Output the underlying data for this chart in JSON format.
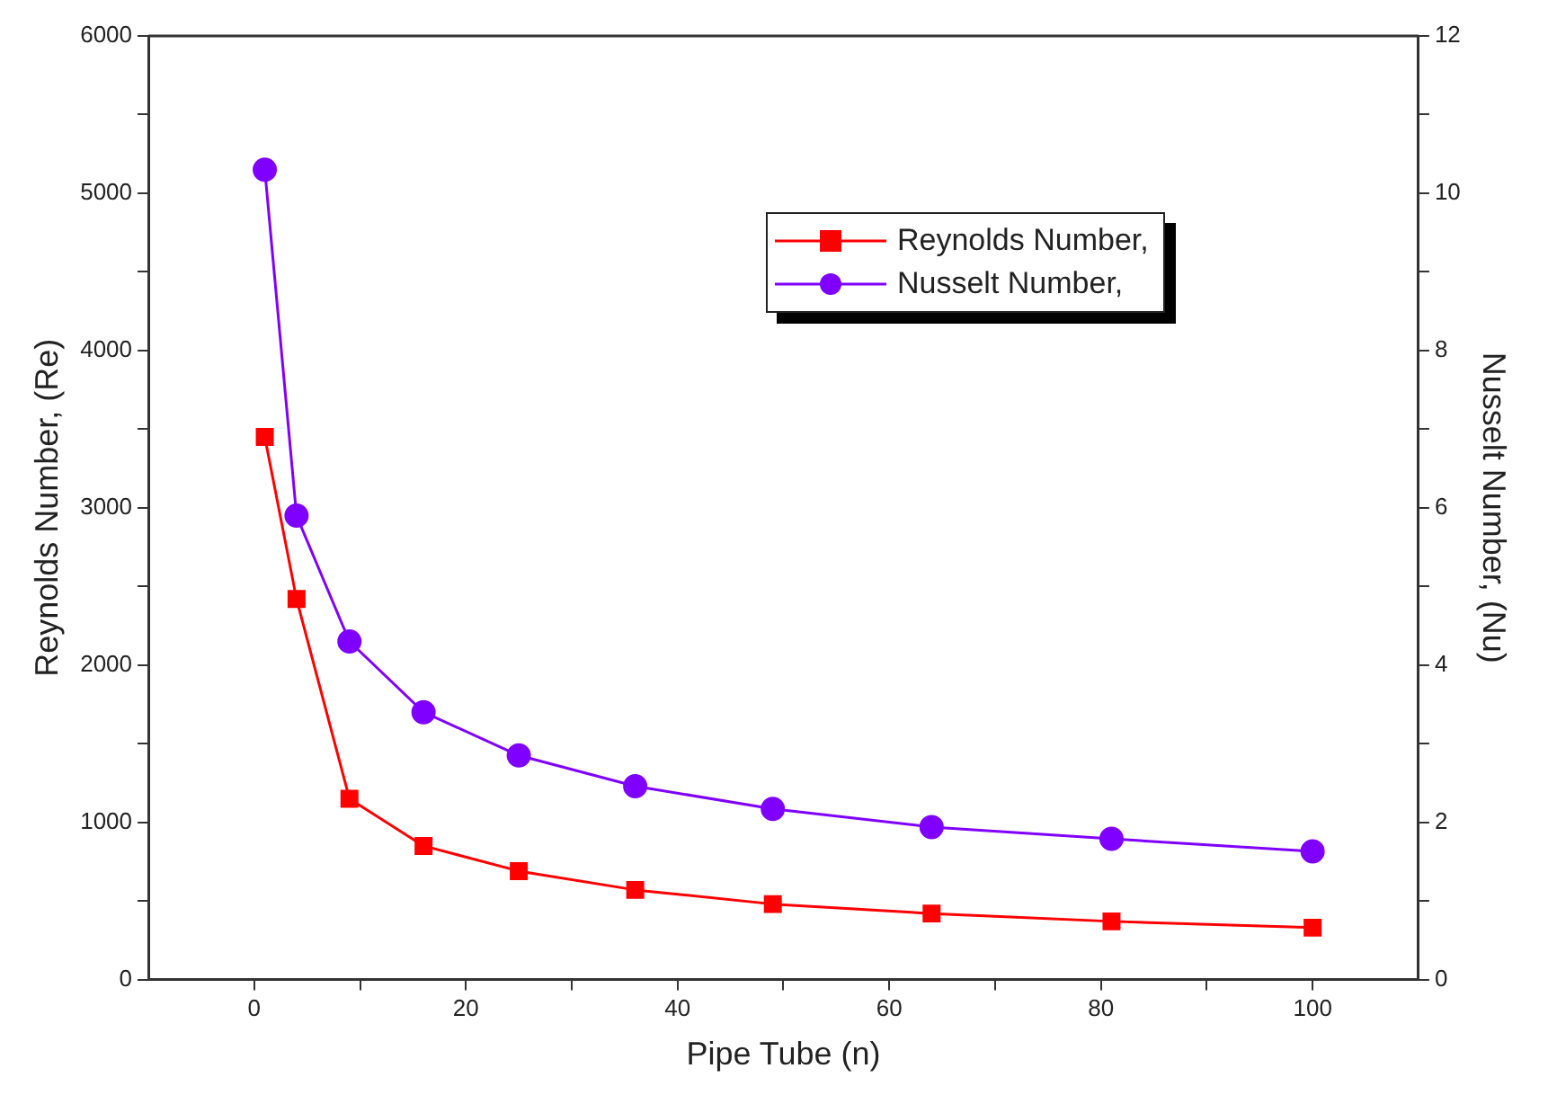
{
  "chart_data": {
    "type": "line",
    "xlabel": "Pipe Tube (n)",
    "ylabel": "Reynolds Number, (Re)",
    "y2label": "Nusselt Number, (Nu)",
    "x": [
      1,
      4,
      9,
      16,
      25,
      36,
      49,
      64,
      81,
      100
    ],
    "series": [
      {
        "name": "Reynolds Number,",
        "color": "#ff0000",
        "marker": "square",
        "axis": "y",
        "values": [
          3450,
          2420,
          1150,
          850,
          690,
          570,
          480,
          420,
          370,
          330
        ]
      },
      {
        "name": "Nusselt Number,",
        "color": "#8000ff",
        "marker": "circle",
        "axis": "y2",
        "values": [
          10.3,
          5.9,
          4.3,
          3.4,
          2.85,
          2.46,
          2.17,
          1.94,
          1.79,
          1.63
        ]
      }
    ],
    "xlim": [
      -10,
      110
    ],
    "xticks": [
      0,
      {
        "value": 10,
        "label": null
      },
      20,
      {
        "value": 30,
        "label": null
      },
      40,
      {
        "value": 50,
        "label": null
      },
      60,
      {
        "value": 70,
        "label": null
      },
      80,
      {
        "value": 90,
        "label": null
      },
      100
    ],
    "ylim": [
      0,
      6000
    ],
    "yticks": [
      0,
      {
        "value": 500,
        "label": null
      },
      1000,
      {
        "value": 1500,
        "label": null
      },
      2000,
      {
        "value": 2500,
        "label": null
      },
      3000,
      {
        "value": 3500,
        "label": null
      },
      4000,
      {
        "value": 4500,
        "label": null
      },
      5000,
      {
        "value": 5500,
        "label": null
      },
      6000
    ],
    "y2lim": [
      0,
      12
    ],
    "y2ticks": [
      0,
      {
        "value": 1,
        "label": null
      },
      2,
      {
        "value": 3,
        "label": null
      },
      4,
      {
        "value": 5,
        "label": null
      },
      6,
      {
        "value": 7,
        "label": null
      },
      8,
      {
        "value": 9,
        "label": null
      },
      10,
      {
        "value": 11,
        "label": null
      },
      12
    ],
    "grid": false,
    "legend": "top right",
    "line_style": "solid"
  }
}
